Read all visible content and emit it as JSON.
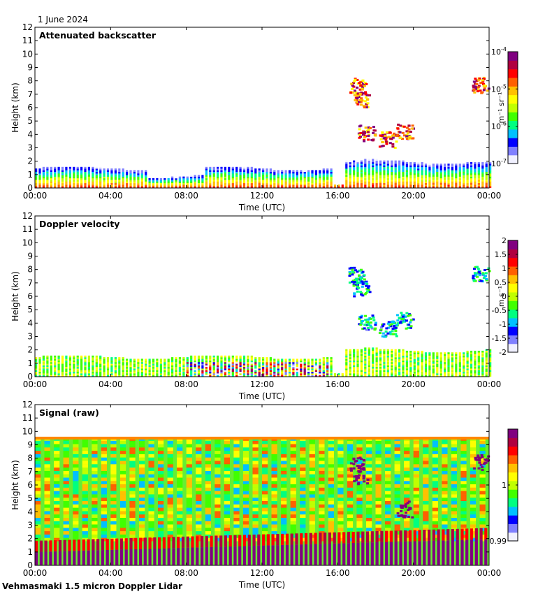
{
  "date_label": "1 June 2024",
  "footer_label": "Vehmasmaki 1.5 micron Doppler Lidar",
  "colors": {
    "rainbow": [
      "#f0f0ff",
      "#8080ff",
      "#0000ff",
      "#00c0ff",
      "#00ff80",
      "#40ff00",
      "#c0ff00",
      "#ffff00",
      "#ffc000",
      "#ff6000",
      "#ff0000",
      "#b00040",
      "#800080"
    ]
  },
  "chart_data": [
    {
      "type": "heatmap",
      "title": "Attenuated backscatter",
      "xlabel": "Time (UTC)",
      "ylabel": "Height (km)",
      "xticks": [
        "00:00",
        "04:00",
        "08:00",
        "12:00",
        "16:00",
        "20:00",
        "00:00"
      ],
      "yticks": [
        "0",
        "1",
        "2",
        "3",
        "4",
        "5",
        "6",
        "7",
        "8",
        "9",
        "10",
        "11",
        "12"
      ],
      "ylim": [
        0,
        12
      ],
      "xlim_hours": [
        0,
        24
      ],
      "colorbar": {
        "label": "m⁻¹ sr⁻¹",
        "scale": "log",
        "ticks": [
          {
            "base": "10",
            "exp": "-7",
            "frac": 0.0
          },
          {
            "base": "10",
            "exp": "-6",
            "frac": 0.333
          },
          {
            "base": "10",
            "exp": "-5",
            "frac": 0.667
          },
          {
            "base": "10",
            "exp": "-4",
            "frac": 1.0
          }
        ]
      }
    },
    {
      "type": "heatmap",
      "title": "Doppler velocity",
      "xlabel": "Time (UTC)",
      "ylabel": "Height (km)",
      "xticks": [
        "00:00",
        "04:00",
        "08:00",
        "12:00",
        "16:00",
        "20:00",
        "00:00"
      ],
      "yticks": [
        "0",
        "1",
        "2",
        "3",
        "4",
        "5",
        "6",
        "7",
        "8",
        "9",
        "10",
        "11",
        "12"
      ],
      "ylim": [
        0,
        12
      ],
      "xlim_hours": [
        0,
        24
      ],
      "colorbar": {
        "label": "m s⁻¹",
        "scale": "linear",
        "ticks": [
          {
            "text": "-2",
            "frac": 0.0
          },
          {
            "text": "-1.5",
            "frac": 0.125
          },
          {
            "text": "-1",
            "frac": 0.25
          },
          {
            "text": "-0.5",
            "frac": 0.375
          },
          {
            "text": "0",
            "frac": 0.5
          },
          {
            "text": "0.5",
            "frac": 0.625
          },
          {
            "text": "1",
            "frac": 0.75
          },
          {
            "text": "1.5",
            "frac": 0.875
          },
          {
            "text": "2",
            "frac": 1.0
          }
        ]
      }
    },
    {
      "type": "heatmap",
      "title": "Signal (raw)",
      "xlabel": "Time (UTC)",
      "ylabel": "Height (km)",
      "xticks": [
        "00:00",
        "04:00",
        "08:00",
        "12:00",
        "16:00",
        "20:00",
        "00:00"
      ],
      "yticks": [
        "0",
        "1",
        "2",
        "3",
        "4",
        "5",
        "6",
        "7",
        "8",
        "9",
        "10",
        "11",
        "12"
      ],
      "ylim": [
        0,
        12
      ],
      "xlim_hours": [
        0,
        24
      ],
      "colorbar": {
        "label": "",
        "scale": "linear",
        "ticks": [
          {
            "text": "0.99",
            "frac": 0.0
          },
          {
            "text": "1",
            "frac": 0.5
          }
        ]
      }
    }
  ]
}
